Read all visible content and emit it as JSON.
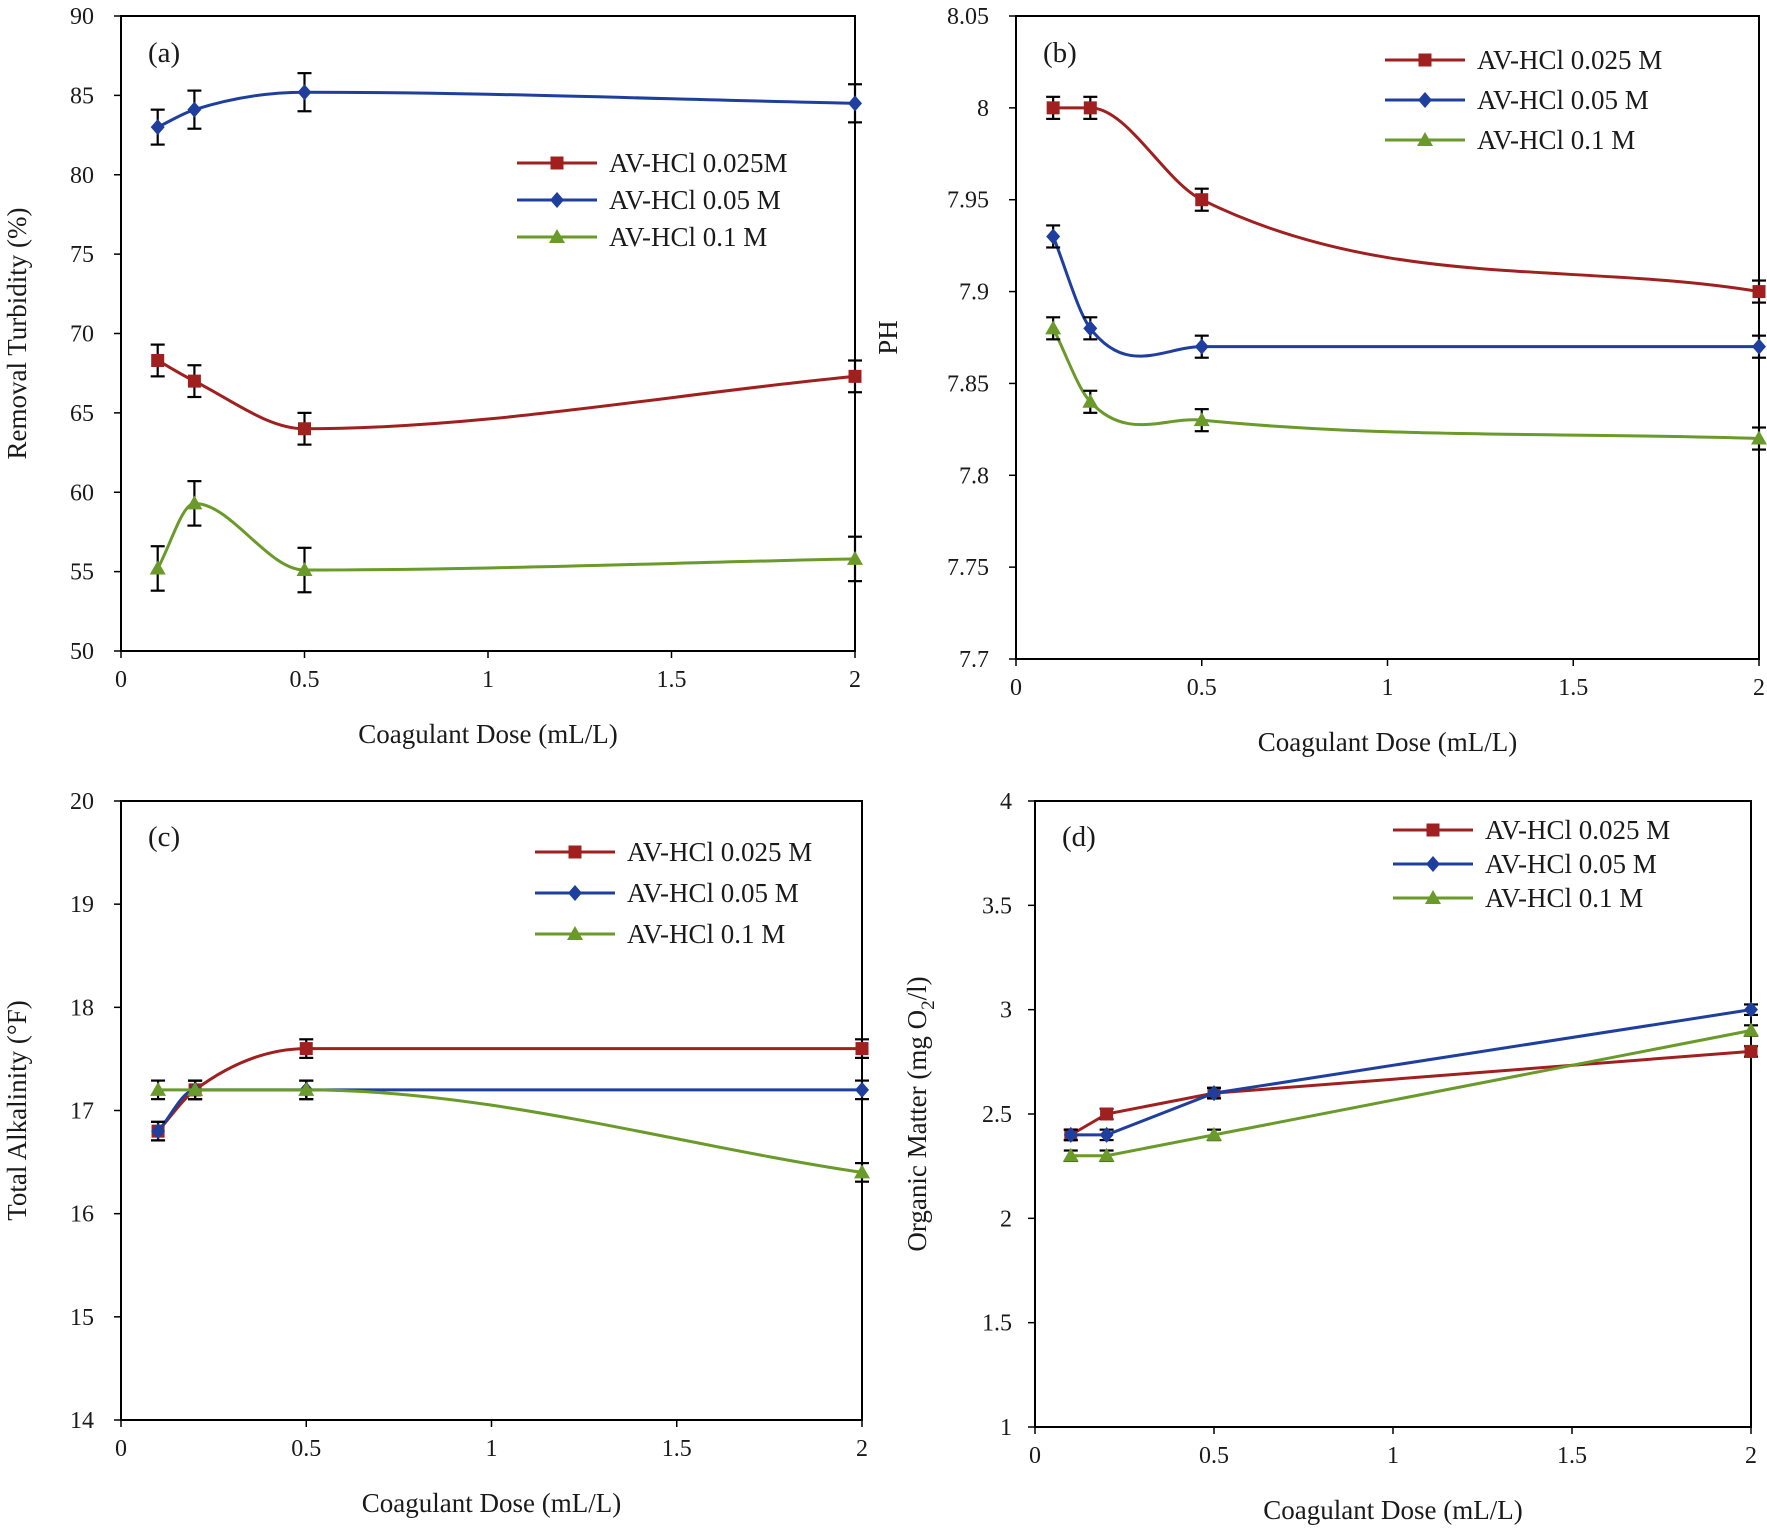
{
  "figure": {
    "background": "#ffffff"
  },
  "chart_data": [
    {
      "id": "a",
      "type": "line",
      "panel_label": "(a)",
      "xlabel": "Coagulant Dose (mL/L)",
      "ylabel": "Removal Turbidity (%)",
      "xlim": [
        0,
        2
      ],
      "ylim": [
        50,
        90
      ],
      "xticks": [
        0,
        0.5,
        1,
        1.5,
        2
      ],
      "xtick_labels": [
        "0",
        "0.5",
        "1",
        "1.5",
        "2"
      ],
      "yticks": [
        50,
        55,
        60,
        65,
        70,
        75,
        80,
        85,
        90
      ],
      "ytick_labels": [
        "50",
        "55",
        "60",
        "65",
        "70",
        "75",
        "80",
        "85",
        "90"
      ],
      "legend_position": "upper-right",
      "x": [
        0.1,
        0.2,
        0.5,
        2
      ],
      "series": [
        {
          "name": "AV-HCl 0.025M",
          "color": "#a02020",
          "marker": "square",
          "values": [
            68.3,
            67.0,
            64.0,
            67.3
          ],
          "errors": [
            1.0,
            1.0,
            1.0,
            1.0
          ]
        },
        {
          "name": "AV-HCl 0.05 M",
          "color": "#1f3f9f",
          "marker": "diamond",
          "values": [
            83.0,
            84.1,
            85.2,
            84.5
          ],
          "errors": [
            1.1,
            1.2,
            1.2,
            1.2
          ]
        },
        {
          "name": "AV-HCl 0.1 M",
          "color": "#6a9a2a",
          "marker": "triangle",
          "values": [
            55.2,
            59.3,
            55.1,
            55.8
          ],
          "errors": [
            1.4,
            1.4,
            1.4,
            1.4
          ]
        }
      ]
    },
    {
      "id": "b",
      "type": "line",
      "panel_label": "(b)",
      "xlabel": "Coagulant Dose (mL/L)",
      "ylabel": "PH",
      "xlim": [
        0,
        2
      ],
      "ylim": [
        7.7,
        8.05
      ],
      "xticks": [
        0,
        0.5,
        1,
        1.5,
        2
      ],
      "xtick_labels": [
        "0",
        "0.5",
        "1",
        "1.5",
        "2"
      ],
      "yticks": [
        7.7,
        7.75,
        7.8,
        7.85,
        7.9,
        7.95,
        8.0,
        8.05
      ],
      "ytick_labels": [
        "7.7",
        "7.75",
        "7.8",
        "7.85",
        "7.9",
        "7.95",
        "8",
        "8.05"
      ],
      "legend_position": "upper-right",
      "x": [
        0.1,
        0.2,
        0.5,
        2
      ],
      "series": [
        {
          "name": "AV-HCl 0.025 M",
          "color": "#a02020",
          "marker": "square",
          "values": [
            8.0,
            8.0,
            7.95,
            7.9
          ],
          "errors": [
            0.006,
            0.006,
            0.006,
            0.006
          ]
        },
        {
          "name": "AV-HCl 0.05 M",
          "color": "#1f3f9f",
          "marker": "diamond",
          "values": [
            7.93,
            7.88,
            7.87,
            7.87
          ],
          "errors": [
            0.006,
            0.006,
            0.006,
            0.006
          ]
        },
        {
          "name": "AV-HCl 0.1 M",
          "color": "#6a9a2a",
          "marker": "triangle",
          "values": [
            7.88,
            7.84,
            7.83,
            7.82
          ],
          "errors": [
            0.006,
            0.006,
            0.006,
            0.006
          ]
        }
      ]
    },
    {
      "id": "c",
      "type": "line",
      "panel_label": "(c)",
      "xlabel": "Coagulant Dose (mL/L)",
      "ylabel": "Total Alkalinity (°F)",
      "xlim": [
        0,
        2
      ],
      "ylim": [
        14,
        20
      ],
      "xticks": [
        0,
        0.5,
        1,
        1.5,
        2
      ],
      "xtick_labels": [
        "0",
        "0.5",
        "1",
        "1.5",
        "2"
      ],
      "yticks": [
        14,
        15,
        16,
        17,
        18,
        19,
        20
      ],
      "ytick_labels": [
        "14",
        "15",
        "16",
        "17",
        "18",
        "19",
        "20"
      ],
      "legend_position": "upper-right",
      "x": [
        0.1,
        0.2,
        0.5,
        2
      ],
      "series": [
        {
          "name": "AV-HCl 0.025 M",
          "color": "#a02020",
          "marker": "square",
          "values": [
            16.8,
            17.2,
            17.6,
            17.6
          ],
          "errors": [
            0.09,
            0.09,
            0.09,
            0.09
          ]
        },
        {
          "name": "AV-HCl 0.05 M",
          "color": "#1f3f9f",
          "marker": "diamond",
          "values": [
            16.8,
            17.2,
            17.2,
            17.2
          ],
          "errors": [
            0.09,
            0.09,
            0.09,
            0.09
          ]
        },
        {
          "name": "AV-HCl 0.1 M",
          "color": "#6a9a2a",
          "marker": "triangle",
          "values": [
            17.2,
            17.2,
            17.2,
            16.4
          ],
          "errors": [
            0.09,
            0.09,
            0.09,
            0.09
          ]
        }
      ]
    },
    {
      "id": "d",
      "type": "line",
      "panel_label": "(d)",
      "xlabel": "Coagulant Dose (mL/L)",
      "ylabel": "Organic Matter (mg O2/l)",
      "ylabel_parts": [
        "Organic Matter (mg  O",
        "2",
        "/l)"
      ],
      "xlim": [
        0,
        2
      ],
      "ylim": [
        1,
        4
      ],
      "xticks": [
        0,
        0.5,
        1,
        1.5,
        2
      ],
      "xtick_labels": [
        "0",
        "0.5",
        "1",
        "1.5",
        "2"
      ],
      "yticks": [
        1,
        1.5,
        2,
        2.5,
        3,
        3.5,
        4
      ],
      "ytick_labels": [
        "1",
        "1.5",
        "2",
        "2.5",
        "3",
        "3.5",
        "4"
      ],
      "legend_position": "upper-right",
      "x": [
        0.1,
        0.2,
        0.5,
        2
      ],
      "series": [
        {
          "name": "AV-HCl 0.025 M",
          "color": "#a02020",
          "marker": "square",
          "values": [
            2.4,
            2.5,
            2.6,
            2.8
          ],
          "errors": [
            0.025,
            0.025,
            0.025,
            0.025
          ]
        },
        {
          "name": "AV-HCl 0.05 M",
          "color": "#1f3f9f",
          "marker": "diamond",
          "values": [
            2.4,
            2.4,
            2.6,
            3.0
          ],
          "errors": [
            0.025,
            0.025,
            0.025,
            0.025
          ]
        },
        {
          "name": "AV-HCl 0.1 M",
          "color": "#6a9a2a",
          "marker": "triangle",
          "values": [
            2.3,
            2.3,
            2.4,
            2.9
          ],
          "errors": [
            0.025,
            0.025,
            0.025,
            0.025
          ]
        }
      ]
    }
  ]
}
